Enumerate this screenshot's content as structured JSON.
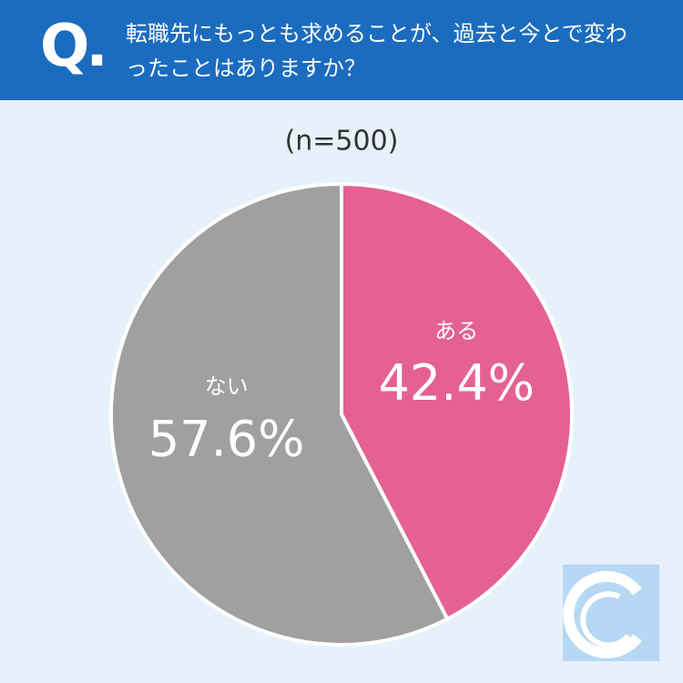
{
  "chart_data": {
    "type": "pie",
    "question_label": "Q.",
    "title": "転職先にもっとも求めることが、過去と今とで変わったことはありますか？",
    "subtitle": "(n=500)",
    "categories": [
      "ある",
      "ない"
    ],
    "values": [
      42.4,
      57.6
    ],
    "value_labels": [
      "42.4%",
      "57.6%"
    ],
    "colors": [
      "#e56192",
      "#a0a0a0"
    ]
  }
}
